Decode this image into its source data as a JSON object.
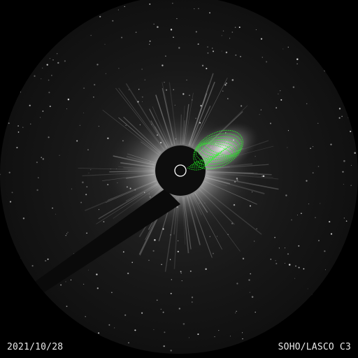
{
  "image": {
    "date": "2021/10/28",
    "instrument": "SOHO/LASCO C3"
  },
  "colors": {
    "background": "#000000",
    "field": "#141414",
    "overlay": "#22ff22",
    "sun_circle": "#ffffff"
  }
}
